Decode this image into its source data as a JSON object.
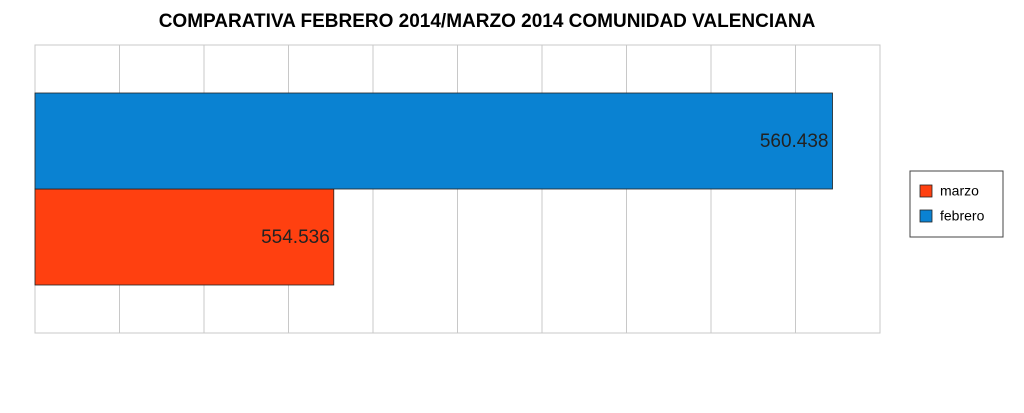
{
  "chart_data": {
    "type": "bar",
    "orientation": "horizontal",
    "title": "COMPARATIVA FEBRERO 2014/MARZO 2014 COMUNIDAD VALENCIANA",
    "categories": [
      null
    ],
    "series": [
      {
        "name": "marzo",
        "color": "#ff4010",
        "values": [
          554536
        ],
        "value_labels": [
          "554.536"
        ]
      },
      {
        "name": "febrero",
        "color": "#0a82d2",
        "values": [
          560438
        ],
        "value_labels": [
          "560.438"
        ]
      }
    ],
    "xlim": [
      551000,
      561000
    ],
    "xticks": [
      551000,
      552000,
      553000,
      554000,
      555000,
      556000,
      557000,
      558000,
      559000,
      560000,
      561000
    ],
    "grid": true,
    "legend": "right"
  }
}
